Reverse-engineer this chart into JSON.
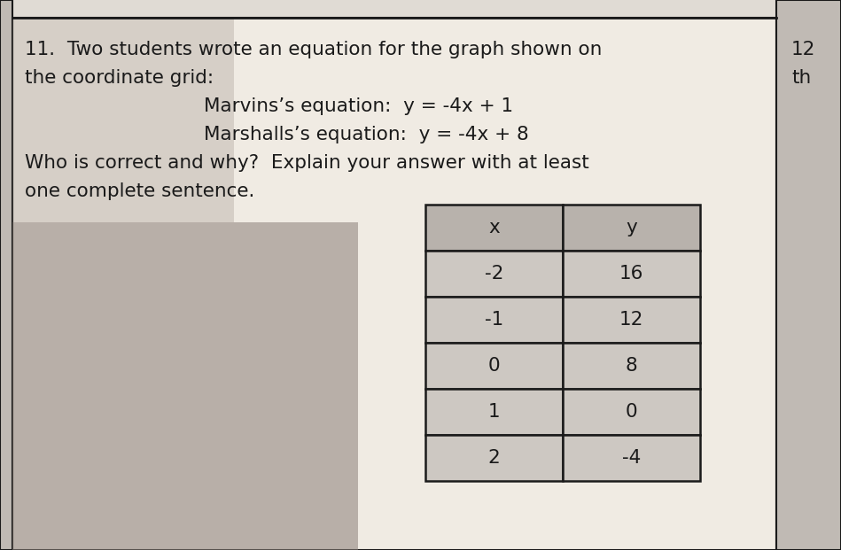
{
  "title_line1": "11.  Two students wrote an equation for the graph shown on",
  "title_line2": "the coordinate grid:",
  "equation1_label": "Marvins’s equation:  y = -4x + 1",
  "equation2_label": "Marshalls’s equation:  y = -4x + 8",
  "question": "Who is correct and why?  Explain your answer with at least",
  "question2": "one complete sentence.",
  "right_label_line1": "12",
  "right_label_line2": "th",
  "table_headers": [
    "x",
    "y"
  ],
  "table_data": [
    [
      "-2",
      "16"
    ],
    [
      "-1",
      "12"
    ],
    [
      "0",
      "8"
    ],
    [
      "1",
      "0"
    ],
    [
      "2",
      "-4"
    ]
  ],
  "main_bg": "#f0ebe3",
  "right_panel_bg": "#c0bab4",
  "table_header_bg": "#b8b2ac",
  "table_row_bg": "#cdc8c2",
  "table_border_color": "#1a1a1a",
  "text_color": "#1a1a1a",
  "outer_border_color": "#1a1a1a",
  "shadow_color": "#9a8f85",
  "top_strip_color": "#e0dbd4",
  "page_bg": "#b8b2ac"
}
